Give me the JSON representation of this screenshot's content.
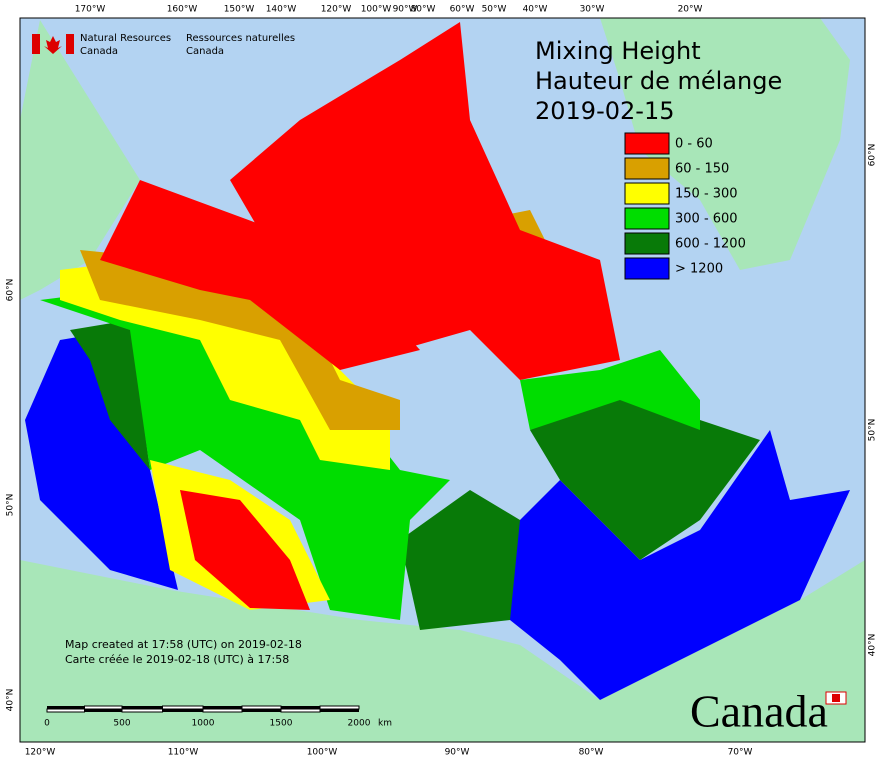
{
  "header": {
    "agency_en": [
      "Natural Resources",
      "Canada"
    ],
    "agency_fr": [
      "Ressources naturelles",
      "Canada"
    ]
  },
  "title": [
    "Mixing Height",
    "Hauteur de mélange",
    "2019-02-15"
  ],
  "legend": [
    {
      "label": "0 - 60",
      "color": "#ff0000"
    },
    {
      "label": "60 - 150",
      "color": "#d9a000"
    },
    {
      "label": "150 - 300",
      "color": "#ffff00"
    },
    {
      "label": "300 - 600",
      "color": "#00dd00"
    },
    {
      "label": "600 - 1200",
      "color": "#087a08"
    },
    {
      "label": "> 1200",
      "color": "#0000ff"
    }
  ],
  "notes": [
    "Map created at 17:58 (UTC) on 2019-02-18",
    "Carte créée le 2019-02-18 (UTC) à 17:58"
  ],
  "scale_bar": {
    "labels": [
      "0",
      "500",
      "1000",
      "1500",
      "2000"
    ],
    "unit": "km"
  },
  "graticule": {
    "top": [
      "170°W",
      "160°W",
      "150°W",
      "140°W",
      "120°W",
      "100°W",
      "90°W",
      "80°W",
      "60°W",
      "50°W",
      "40°W",
      "30°W",
      "20°W"
    ],
    "bottom": [
      "120°W",
      "110°W",
      "100°W",
      "90°W",
      "80°W",
      "70°W"
    ],
    "left": [
      "60°N",
      "50°N",
      "40°N"
    ],
    "right": [
      "60°N",
      "50°N",
      "40°N"
    ]
  },
  "wordmark": "Canada"
}
